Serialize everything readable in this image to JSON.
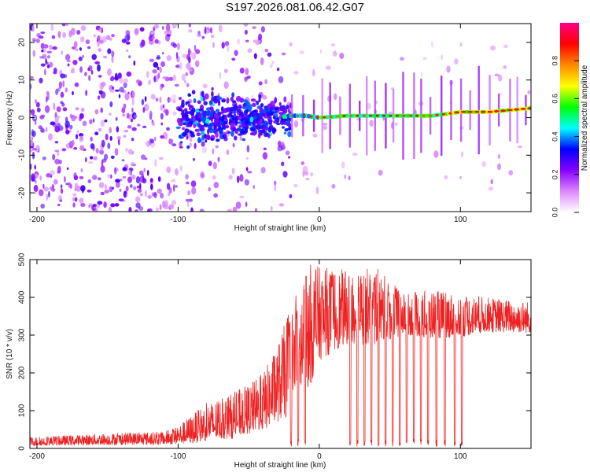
{
  "title": "S197.2026.081.06.42.G07",
  "chart_data": [
    {
      "type": "heatmap",
      "name": "spectrogram",
      "xlabel": "Height of straight line (km)",
      "ylabel": "Frequency (Hz)",
      "xlim": [
        -205,
        150
      ],
      "ylim": [
        -25,
        25
      ],
      "xticks": [
        -200,
        -100,
        0,
        100
      ],
      "xtick_labels": [
        "-200",
        "-100",
        "0",
        "100"
      ],
      "yticks": [
        -20,
        -10,
        0,
        10,
        20
      ],
      "ytick_labels": [
        "-20",
        "-10",
        "0",
        "10",
        "20"
      ],
      "colorbar": {
        "label": "Normalized spectral amplitude",
        "range": [
          0.0,
          1.0
        ],
        "ticks": [
          0.0,
          0.2,
          0.4,
          0.6,
          0.8
        ],
        "tick_labels": [
          "0.0",
          "0.2",
          "0.4",
          "0.6",
          "0.8"
        ],
        "colors": [
          "#ffffff",
          "#dd88ff",
          "#8800ff",
          "#0000ff",
          "#00ffff",
          "#00ff00",
          "#ffff00",
          "#ff8800",
          "#ff0000",
          "#ff0088"
        ]
      },
      "ridge": {
        "description_points_x": [
          -80,
          -60,
          -40,
          -20,
          -10,
          0,
          20,
          40,
          60,
          80,
          100,
          120,
          150
        ],
        "description_points_freq": [
          0.5,
          0.5,
          -0.5,
          0.5,
          0.5,
          0.0,
          0.5,
          0.5,
          0.5,
          0.5,
          1.5,
          1.5,
          2.5
        ]
      }
    },
    {
      "type": "line",
      "name": "snr",
      "xlabel": "Height of straight line (km)",
      "ylabel": "SNR (10 * v/v)",
      "xlim": [
        -205,
        150
      ],
      "ylim": [
        0,
        500
      ],
      "xticks": [
        -200,
        -100,
        0,
        100
      ],
      "xtick_labels": [
        "-200",
        "-100",
        "0",
        "100"
      ],
      "yticks": [
        0,
        100,
        200,
        300,
        400,
        500
      ],
      "ytick_labels": [
        "0",
        "100",
        "200",
        "300",
        "400",
        "500"
      ],
      "line_color": "#ee2222",
      "envelope": {
        "x": [
          -205,
          -150,
          -110,
          -100,
          -90,
          -80,
          -70,
          -60,
          -50,
          -40,
          -30,
          -20,
          -15,
          -10,
          -5,
          0,
          10,
          20,
          40,
          60,
          80,
          100,
          120,
          150
        ],
        "mean": [
          15,
          20,
          22,
          28,
          40,
          55,
          60,
          70,
          85,
          100,
          140,
          190,
          230,
          260,
          290,
          320,
          335,
          345,
          345,
          340,
          335,
          335,
          340,
          335
        ],
        "peak": [
          30,
          40,
          45,
          60,
          90,
          120,
          130,
          150,
          170,
          200,
          270,
          380,
          420,
          460,
          500,
          480,
          480,
          470,
          480,
          410,
          420,
          410,
          400,
          390
        ]
      },
      "dropouts_x": [
        -20,
        -15,
        -10,
        22,
        27,
        32,
        37,
        42,
        47,
        52,
        57,
        62,
        67,
        72,
        77,
        83,
        89,
        96,
        101
      ]
    }
  ]
}
